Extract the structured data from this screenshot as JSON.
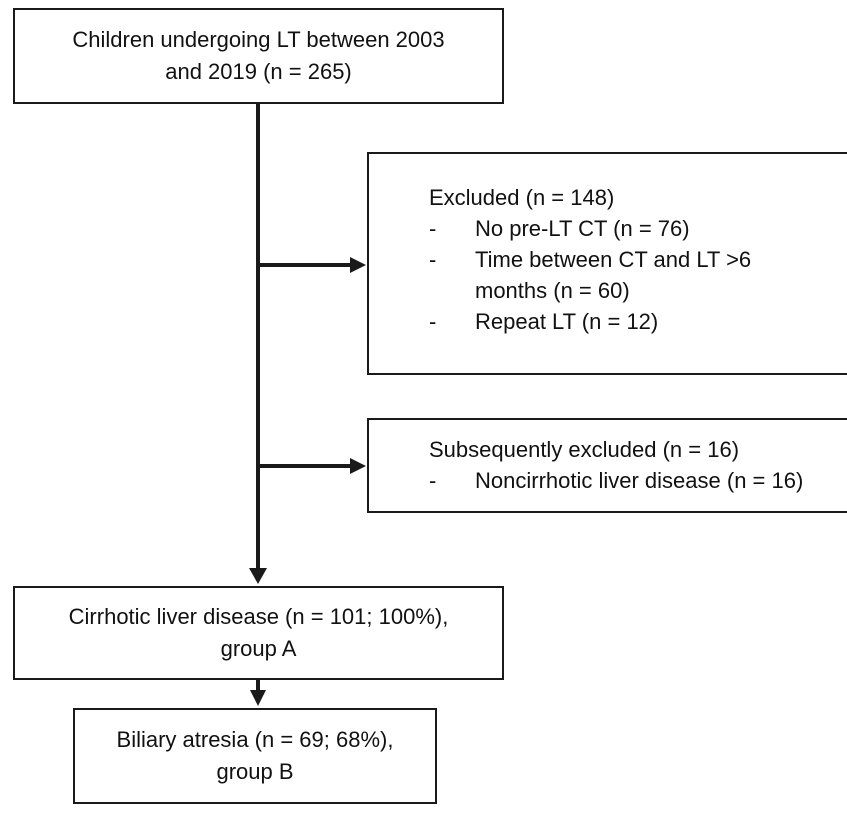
{
  "flowchart": {
    "start": {
      "line1": "Children undergoing LT between 2003",
      "line2": "and 2019 (n = 265)"
    },
    "excluded": {
      "heading": "Excluded (n = 148)",
      "items": [
        {
          "dash": "-",
          "text": "No pre-LT CT (n = 76)"
        },
        {
          "dash": "-",
          "text": "Time between CT and LT >6"
        },
        {
          "dash": "",
          "text": "months (n = 60)"
        },
        {
          "dash": "-",
          "text": "Repeat LT (n = 12)"
        }
      ]
    },
    "subsequently_excluded": {
      "heading": "Subsequently excluded (n = 16)",
      "items": [
        {
          "dash": "-",
          "text": "Noncirrhotic liver disease (n = 16)"
        }
      ]
    },
    "group_a": {
      "line1": "Cirrhotic liver disease (n = 101; 100%),",
      "line2": "group A"
    },
    "group_b": {
      "line1": "Biliary atresia (n = 69; 68%),",
      "line2": "group B"
    }
  }
}
